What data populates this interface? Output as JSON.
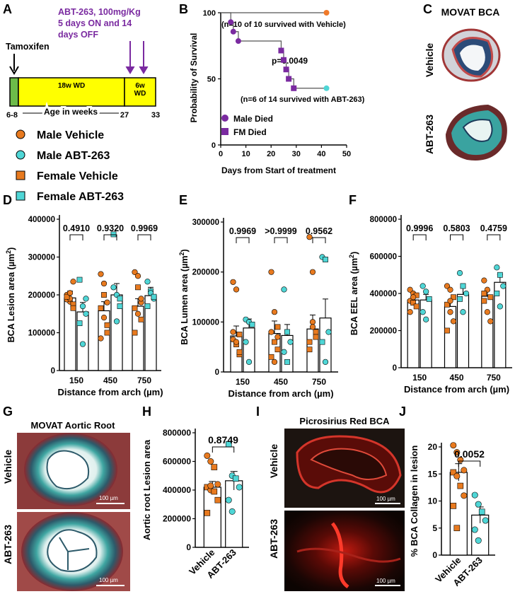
{
  "colors": {
    "orange": "#e87a1f",
    "cyan": "#4fd6d6",
    "purple": "#7a2aa0",
    "yellow": "#ffff00",
    "green": "#6dbb4a",
    "vehicle_surv": "#f07a2a",
    "abt_surv": "#4fd6d6"
  },
  "panel_letters": {
    "A": "A",
    "B": "B",
    "C": "C",
    "D": "D",
    "E": "E",
    "F": "F",
    "G": "G",
    "H": "H",
    "I": "I",
    "J": "J"
  },
  "panelA": {
    "tamoxifen": "Tamoxifen",
    "treatment": [
      "ABT-263, 100mg/Kg",
      "5 days ON and 14",
      "days OFF"
    ],
    "wd18": "18w WD",
    "wd6": [
      "6w",
      "WD"
    ],
    "ages": {
      "a1": "6-8",
      "a2": "27",
      "a3": "33"
    },
    "axis_label": "Age in weeks"
  },
  "legend": [
    {
      "label": "Male Vehicle",
      "shape": "circle",
      "color": "#e87a1f"
    },
    {
      "label": "Male ABT-263",
      "shape": "circle",
      "color": "#4fd6d6"
    },
    {
      "label": "Female Vehicle",
      "shape": "square",
      "color": "#e87a1f"
    },
    {
      "label": "Female ABT-263",
      "shape": "square",
      "color": "#4fd6d6"
    }
  ],
  "panelC": {
    "title": "MOVAT BCA",
    "row1": "Vehicle",
    "row2": "ABT-263"
  },
  "panelG": {
    "title": "MOVAT Aortic Root",
    "row1": "Vehicle",
    "row2": "ABT-263",
    "scale1": "100 µm",
    "scale2": "100 µm"
  },
  "panelI": {
    "title": "Picrosirius Red BCA",
    "row1": "Vehicle",
    "row2": "ABT-263",
    "scale1": "100 µm",
    "scale2": "100 µm"
  },
  "chart_data": [
    {
      "id": "B",
      "type": "line",
      "subtype": "survival",
      "title": "",
      "xlabel": "Days from Start of treatment",
      "ylabel": "Probability of Survival",
      "xlim": [
        0,
        50
      ],
      "ylim": [
        0,
        100
      ],
      "xticks": [
        0,
        10,
        20,
        30,
        40,
        50
      ],
      "yticks": [
        0,
        50,
        100
      ],
      "series": [
        {
          "name": "Vehicle",
          "color": "#f07a2a",
          "x": [
            0,
            42
          ],
          "y": [
            100,
            100
          ]
        },
        {
          "name": "ABT-263",
          "color": "#7a2aa0",
          "x": [
            0,
            4,
            4,
            5,
            5,
            7,
            7,
            24,
            24,
            25,
            25,
            26,
            26,
            27,
            27,
            29,
            29,
            42
          ],
          "y": [
            100,
            100,
            92.9,
            92.9,
            85.7,
            85.7,
            78.6,
            78.6,
            71.4,
            71.4,
            64.3,
            64.3,
            57.1,
            57.1,
            50,
            50,
            42.9,
            42.9
          ]
        }
      ],
      "events": [
        {
          "day": 4,
          "y": 92.9,
          "shape": "circle"
        },
        {
          "day": 5,
          "y": 85.7,
          "shape": "circle"
        },
        {
          "day": 7,
          "y": 78.6,
          "shape": "circle"
        },
        {
          "day": 24,
          "y": 71.4,
          "shape": "square"
        },
        {
          "day": 25,
          "y": 64.3,
          "shape": "square"
        },
        {
          "day": 26,
          "y": 57.1,
          "shape": "square"
        },
        {
          "day": 27,
          "y": 50,
          "shape": "square"
        },
        {
          "day": 29,
          "y": 42.9,
          "shape": "square"
        }
      ],
      "end_points": [
        {
          "day": 42,
          "y": 100,
          "color": "#f07a2a"
        },
        {
          "day": 42,
          "y": 42.9,
          "color": "#4fd6d6"
        }
      ],
      "annotations": {
        "vehicle": "(n=10 of 10 survived with Vehicle)",
        "p": "p=0.0049",
        "abt": "(n=6 of 14 survived with ABT-263)",
        "legend_male": "Male Died",
        "legend_female": "FM Died"
      }
    },
    {
      "id": "D",
      "type": "bar",
      "title": "",
      "xlabel": "Distance from arch (µm)",
      "ylabel_main": "BCA Lesion area (µm",
      "ylabel_sup": "2",
      "ylabel_tail": ")",
      "ylim": [
        0,
        400000
      ],
      "yticks": [
        0,
        100000,
        200000,
        300000,
        400000
      ],
      "yticklabels": [
        "0",
        "100000",
        "200000",
        "300000",
        "400000"
      ],
      "categories": [
        "150",
        "450",
        "750"
      ],
      "pvalues": [
        "0.4910",
        "0.9320",
        "0.9969"
      ],
      "series": [
        {
          "name": "Vehicle",
          "values": [
            192000,
            158000,
            170000
          ],
          "errors": [
            18000,
            24000,
            20000
          ],
          "points": [
            [
              200000,
              0
            ],
            [
              182000,
              0
            ],
            [
              235000,
              0
            ],
            [
              188000,
              0
            ],
            [
              190000,
              0
            ],
            [
              175000,
              1
            ],
            [
              195000,
              1
            ],
            [
              205000,
              0
            ],
            [
              165000,
              1
            ]
          ],
          "points_450": [
            [
              255000,
              0
            ],
            [
              200000,
              1
            ],
            [
              180000,
              0
            ],
            [
              165000,
              1
            ],
            [
              140000,
              0
            ],
            [
              100000,
              1
            ],
            [
              85000,
              0
            ],
            [
              230000,
              0
            ],
            [
              120000,
              1
            ]
          ],
          "points_750": [
            [
              260000,
              0
            ],
            [
              220000,
              1
            ],
            [
              180000,
              0
            ],
            [
              165000,
              1
            ],
            [
              150000,
              0
            ],
            [
              135000,
              1
            ],
            [
              100000,
              1
            ],
            [
              250000,
              0
            ],
            [
              190000,
              0
            ]
          ]
        },
        {
          "name": "ABT-263",
          "values": [
            155000,
            200000,
            198000
          ],
          "errors": [
            25000,
            30000,
            22000
          ],
          "points": [
            [
              240000,
              1
            ],
            [
              170000,
              0
            ],
            [
              150000,
              0
            ],
            [
              125000,
              1
            ],
            [
              70000,
              0
            ],
            [
              190000,
              0
            ]
          ],
          "points_450": [
            [
              360000,
              1
            ],
            [
              200000,
              0
            ],
            [
              170000,
              1
            ],
            [
              220000,
              0
            ],
            [
              130000,
              0
            ],
            [
              190000,
              1
            ]
          ],
          "points_750": [
            [
              235000,
              0
            ],
            [
              210000,
              1
            ],
            [
              190000,
              0
            ],
            [
              170000,
              1
            ],
            [
              205000,
              0
            ],
            [
              195000,
              1
            ]
          ]
        }
      ]
    },
    {
      "id": "E",
      "type": "bar",
      "title": "",
      "xlabel": "Distance from arch (µm)",
      "ylabel_main": "BCA Lumen area (µm",
      "ylabel_sup": "2",
      "ylabel_tail": ")",
      "ylim": [
        0,
        300000
      ],
      "yticks": [
        0,
        100000,
        200000,
        300000
      ],
      "yticklabels": [
        "0",
        "100000",
        "200000",
        "300000"
      ],
      "categories": [
        "150",
        "450",
        "750"
      ],
      "pvalues": [
        "0.9969",
        ">0.9999",
        "0.9562"
      ],
      "series": [
        {
          "name": "Vehicle",
          "values": [
            72000,
            77000,
            86000
          ],
          "errors": [
            20000,
            25000,
            28000
          ],
          "points": [
            [
              180000,
              0
            ],
            [
              165000,
              0
            ],
            [
              75000,
              1
            ],
            [
              65000,
              0
            ],
            [
              55000,
              1
            ],
            [
              35000,
              1
            ],
            [
              80000,
              0
            ],
            [
              60000,
              0
            ],
            [
              40000,
              1
            ]
          ],
          "points_450": [
            [
              200000,
              0
            ],
            [
              120000,
              0
            ],
            [
              90000,
              1
            ],
            [
              80000,
              0
            ],
            [
              60000,
              1
            ],
            [
              45000,
              1
            ],
            [
              30000,
              1
            ],
            [
              20000,
              0
            ],
            [
              70000,
              0
            ]
          ],
          "points_750": [
            [
              270000,
              0
            ],
            [
              200000,
              0
            ],
            [
              80000,
              1
            ],
            [
              60000,
              1
            ],
            [
              100000,
              0
            ],
            [
              70000,
              1
            ],
            [
              45000,
              1
            ],
            [
              90000,
              0
            ]
          ]
        },
        {
          "name": "ABT-263",
          "values": [
            88000,
            73000,
            108000
          ],
          "errors": [
            18000,
            22000,
            38000
          ],
          "points": [
            [
              105000,
              0
            ],
            [
              100000,
              0
            ],
            [
              95000,
              1
            ],
            [
              60000,
              0
            ],
            [
              20000,
              0
            ]
          ],
          "points_450": [
            [
              165000,
              0
            ],
            [
              80000,
              1
            ],
            [
              60000,
              0
            ],
            [
              40000,
              0
            ],
            [
              20000,
              1
            ]
          ],
          "points_750": [
            [
              230000,
              0
            ],
            [
              225000,
              1
            ],
            [
              80000,
              0
            ],
            [
              60000,
              1
            ],
            [
              20000,
              0
            ]
          ]
        }
      ]
    },
    {
      "id": "F",
      "type": "bar",
      "title": "",
      "xlabel": "Distance from arch (µm)",
      "ylabel_main": "BCA EEL area (µm",
      "ylabel_sup": "2",
      "ylabel_tail": ")",
      "ylim": [
        0,
        800000
      ],
      "yticks": [
        0,
        200000,
        400000,
        600000,
        800000
      ],
      "yticklabels": [
        "0",
        "200000",
        "400000",
        "600000",
        "800000"
      ],
      "categories": [
        "150",
        "450",
        "750"
      ],
      "pvalues": [
        "0.9996",
        "0.5803",
        "0.4759"
      ],
      "series": [
        {
          "name": "Vehicle",
          "values": [
            365000,
            330000,
            385000
          ],
          "errors": [
            22000,
            35000,
            30000
          ],
          "points": [
            [
              420000,
              0
            ],
            [
              400000,
              0
            ],
            [
              390000,
              1
            ],
            [
              360000,
              0
            ],
            [
              350000,
              1
            ],
            [
              330000,
              1
            ],
            [
              300000,
              0
            ],
            [
              380000,
              0
            ]
          ],
          "points_450": [
            [
              440000,
              0
            ],
            [
              420000,
              0
            ],
            [
              380000,
              1
            ],
            [
              340000,
              1
            ],
            [
              300000,
              0
            ],
            [
              250000,
              0
            ],
            [
              200000,
              1
            ],
            [
              360000,
              0
            ]
          ],
          "points_750": [
            [
              470000,
              0
            ],
            [
              420000,
              0
            ],
            [
              380000,
              1
            ],
            [
              360000,
              1
            ],
            [
              300000,
              0
            ],
            [
              250000,
              0
            ],
            [
              400000,
              1
            ]
          ]
        },
        {
          "name": "ABT-263",
          "values": [
            365000,
            395000,
            460000
          ],
          "errors": [
            30000,
            40000,
            42000
          ],
          "points": [
            [
              440000,
              0
            ],
            [
              410000,
              0
            ],
            [
              370000,
              1
            ],
            [
              300000,
              0
            ],
            [
              260000,
              0
            ]
          ],
          "points_450": [
            [
              510000,
              0
            ],
            [
              440000,
              1
            ],
            [
              400000,
              0
            ],
            [
              370000,
              1
            ],
            [
              300000,
              0
            ]
          ],
          "points_750": [
            [
              540000,
              0
            ],
            [
              500000,
              1
            ],
            [
              440000,
              0
            ],
            [
              400000,
              1
            ],
            [
              330000,
              0
            ]
          ]
        }
      ]
    },
    {
      "id": "H",
      "type": "bar",
      "title": "",
      "xlabel": "",
      "ylabel": "Aortic root Lesion area",
      "ylim": [
        0,
        800000
      ],
      "yticks": [
        0,
        200000,
        400000,
        600000,
        800000
      ],
      "yticklabels": [
        "0",
        "200000",
        "400000",
        "600000",
        "800000"
      ],
      "categories": [
        "Vehicle",
        "ABT-263"
      ],
      "pvalues": [
        "0.8749"
      ],
      "values": [
        420000,
        465000
      ],
      "errors": [
        40000,
        65000
      ],
      "points": [
        [
          [
            640000,
            0
          ],
          [
            600000,
            0
          ],
          [
            560000,
            1
          ],
          [
            440000,
            0
          ],
          [
            420000,
            1
          ],
          [
            400000,
            0
          ],
          [
            390000,
            1
          ],
          [
            330000,
            1
          ],
          [
            240000,
            1
          ],
          [
            430000,
            0
          ]
        ],
        [
          [
            720000,
            1
          ],
          [
            500000,
            0
          ],
          [
            480000,
            1
          ],
          [
            420000,
            0
          ],
          [
            330000,
            0
          ],
          [
            250000,
            0
          ]
        ]
      ]
    },
    {
      "id": "J",
      "type": "bar",
      "title": "",
      "xlabel": "",
      "ylabel": "% BCA Collagen in lesion",
      "ylim": [
        0,
        20
      ],
      "yticks": [
        0,
        5,
        10,
        15,
        20
      ],
      "yticklabels": [
        "0",
        "5",
        "10",
        "15",
        "20"
      ],
      "categories": [
        "Vehicle",
        "ABT-263"
      ],
      "pvalues": [
        "0.0052"
      ],
      "values": [
        15.3,
        7.4
      ],
      "errors": [
        1.6,
        1.5
      ],
      "points": [
        [
          [
            20.3,
            0
          ],
          [
            19.0,
            0
          ],
          [
            17.6,
            0
          ],
          [
            15.7,
            0
          ],
          [
            15.3,
            1
          ],
          [
            14.6,
            0
          ],
          [
            12.8,
            1
          ],
          [
            11.0,
            0
          ],
          [
            9.1,
            1
          ],
          [
            5.0,
            1
          ]
        ],
        [
          [
            11.1,
            0
          ],
          [
            9.4,
            0
          ],
          [
            8.0,
            1
          ],
          [
            6.4,
            0
          ],
          [
            4.7,
            0
          ],
          [
            2.7,
            0
          ]
        ]
      ]
    }
  ]
}
